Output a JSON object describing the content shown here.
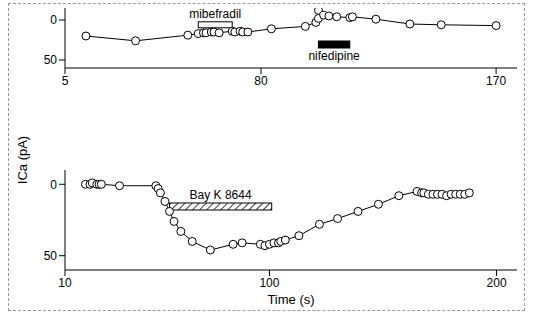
{
  "chart_data": [
    {
      "type": "line",
      "ylabel": "ICa (pA)",
      "xlim": [
        5,
        178
      ],
      "xticks": [
        5,
        80,
        170
      ],
      "ylim": [
        -15,
        60
      ],
      "yticks": [
        0,
        50
      ],
      "grid": false,
      "series": [
        {
          "name": null,
          "color": "#000000",
          "marker": "open_circle",
          "x": [
            13,
            32,
            52,
            56,
            58,
            59,
            61,
            62,
            64,
            69,
            70,
            72,
            73,
            75,
            84,
            97,
            101,
            102,
            102,
            104,
            106,
            109,
            114,
            115,
            124,
            137,
            149,
            170
          ],
          "values": [
            20,
            26,
            19,
            17,
            16,
            16,
            15,
            15,
            16,
            14,
            15,
            14,
            15,
            15,
            11,
            8,
            3,
            -2,
            -12,
            -6,
            -5,
            -4,
            -3,
            -4,
            -1,
            5,
            6,
            7
          ]
        }
      ],
      "annotations": [
        {
          "text": "mibefradil",
          "start": 56,
          "end": 69,
          "marker": "open_bar"
        },
        {
          "text": "nifedipine",
          "start": 102,
          "end": 114,
          "marker": "filled_bar"
        }
      ]
    },
    {
      "type": "line",
      "xlabel": "Time (s)",
      "xlim": [
        10,
        209
      ],
      "xticks": [
        10,
        100,
        200
      ],
      "ylim": [
        -10,
        60
      ],
      "yticks": [
        0,
        50
      ],
      "grid": false,
      "series": [
        {
          "name": null,
          "color": "#000000",
          "marker": "open_circle",
          "x": [
            19,
            21,
            22,
            24,
            25,
            26,
            34,
            50,
            51,
            52,
            54,
            56,
            58,
            61,
            66,
            74,
            84,
            88,
            96,
            98,
            100,
            102,
            104,
            105,
            107,
            113,
            122,
            130,
            139,
            148,
            157,
            165,
            167,
            168,
            170,
            172,
            174,
            176,
            178,
            180,
            182,
            184,
            186,
            188
          ],
          "values": [
            0,
            0,
            -1,
            0,
            0,
            0,
            1,
            1,
            3,
            6,
            12,
            19,
            26,
            33,
            40,
            46,
            42,
            41,
            42,
            43,
            42,
            41,
            41,
            40,
            39,
            36,
            28,
            24,
            19,
            14,
            8,
            5,
            6,
            6,
            7,
            7,
            7,
            7,
            8,
            7,
            7,
            7,
            7,
            6
          ]
        }
      ],
      "annotations": [
        {
          "text": "Bay K 8644",
          "start": 56,
          "end": 101,
          "marker": "hatched_bar"
        }
      ]
    }
  ]
}
